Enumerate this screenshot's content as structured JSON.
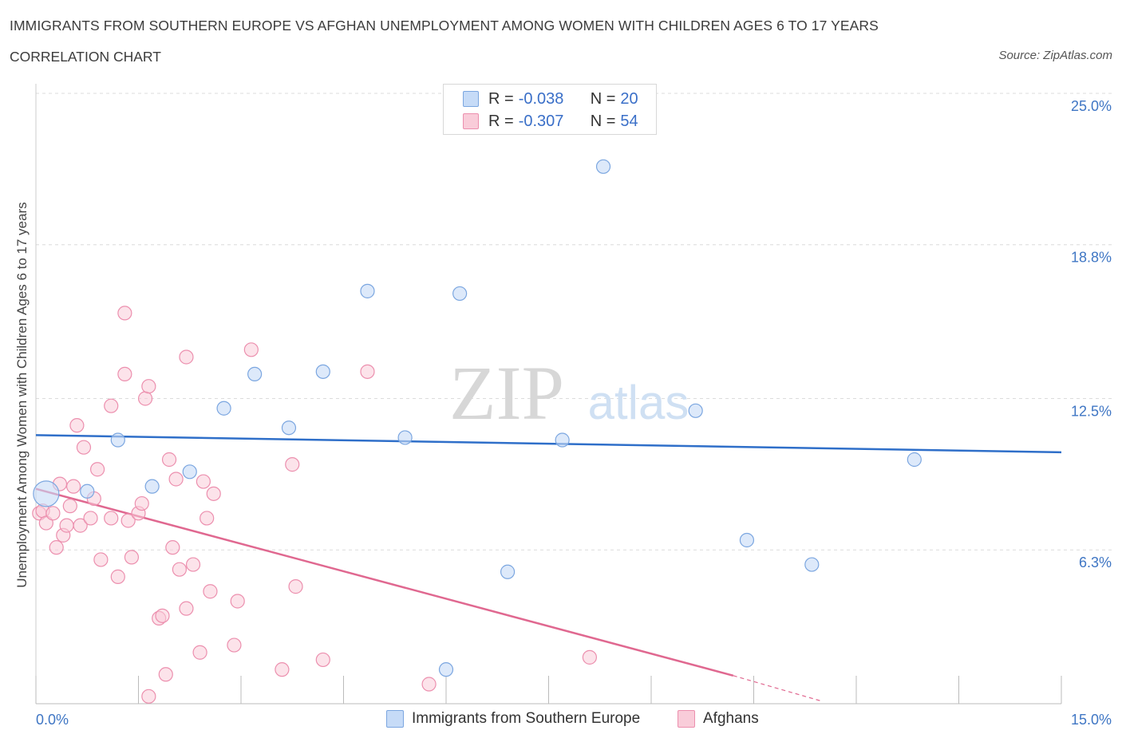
{
  "header": {
    "title": "IMMIGRANTS FROM SOUTHERN EUROPE VS AFGHAN UNEMPLOYMENT AMONG WOMEN WITH CHILDREN AGES 6 TO 17 YEARS",
    "subtitle": "CORRELATION CHART",
    "source": "Source: ZipAtlas.com"
  },
  "legend": {
    "blue": {
      "r_label": "R =",
      "r_value": "-0.038",
      "n_label": "N =",
      "n_value": "20"
    },
    "pink": {
      "r_label": "R =",
      "r_value": "-0.307",
      "n_label": "N =",
      "n_value": "54"
    }
  },
  "watermark": {
    "zip": "ZIP",
    "atlas": "atlas"
  },
  "colors": {
    "blue_fill": "#c6dbf7",
    "blue_stroke": "#7ba6e0",
    "blue_line": "#2f6fc9",
    "pink_fill": "#f9ccd9",
    "pink_stroke": "#ec8fae",
    "pink_line": "#e06890",
    "tick_label": "#3f76c4"
  },
  "chart_data": {
    "type": "scatter",
    "title": "IMMIGRANTS FROM SOUTHERN EUROPE VS AFGHAN UNEMPLOYMENT AMONG WOMEN WITH CHILDREN AGES 6 TO 17 YEARS",
    "xlabel": "",
    "ylabel": "Unemployment Among Women with Children Ages 6 to 17 years",
    "xlim": [
      0,
      15
    ],
    "ylim": [
      0,
      25
    ],
    "x_tick_labels": [
      "0.0%",
      "15.0%"
    ],
    "y_ticks": [
      6.3,
      12.5,
      18.8,
      25.0
    ],
    "y_tick_labels": [
      "6.3%",
      "12.5%",
      "18.8%",
      "25.0%"
    ],
    "grid": true,
    "legend_position": "bottom-center",
    "series": [
      {
        "name": "Immigrants from Southern Europe",
        "color": "#7ba6e0",
        "points": [
          {
            "x": 0.15,
            "y": 8.6,
            "big": true
          },
          {
            "x": 0.75,
            "y": 8.7
          },
          {
            "x": 1.2,
            "y": 10.8
          },
          {
            "x": 1.7,
            "y": 8.9
          },
          {
            "x": 2.25,
            "y": 9.5
          },
          {
            "x": 2.75,
            "y": 12.1
          },
          {
            "x": 3.2,
            "y": 13.5
          },
          {
            "x": 3.7,
            "y": 11.3
          },
          {
            "x": 4.2,
            "y": 13.6
          },
          {
            "x": 4.85,
            "y": 16.9
          },
          {
            "x": 5.4,
            "y": 10.9
          },
          {
            "x": 6.2,
            "y": 16.8
          },
          {
            "x": 6.0,
            "y": 1.4
          },
          {
            "x": 6.9,
            "y": 5.4
          },
          {
            "x": 7.7,
            "y": 10.8
          },
          {
            "x": 8.3,
            "y": 22.0
          },
          {
            "x": 9.65,
            "y": 12.0
          },
          {
            "x": 10.4,
            "y": 6.7
          },
          {
            "x": 11.35,
            "y": 5.7
          },
          {
            "x": 12.85,
            "y": 10.0
          }
        ]
      },
      {
        "name": "Afghans",
        "color": "#ec8fae",
        "points": [
          {
            "x": 0.05,
            "y": 7.8
          },
          {
            "x": 0.1,
            "y": 7.9
          },
          {
            "x": 0.15,
            "y": 7.4
          },
          {
            "x": 0.25,
            "y": 7.8
          },
          {
            "x": 0.3,
            "y": 6.4
          },
          {
            "x": 0.35,
            "y": 9.0
          },
          {
            "x": 0.4,
            "y": 6.9
          },
          {
            "x": 0.45,
            "y": 7.3
          },
          {
            "x": 0.5,
            "y": 8.1
          },
          {
            "x": 0.55,
            "y": 8.9
          },
          {
            "x": 0.6,
            "y": 11.4
          },
          {
            "x": 0.65,
            "y": 7.3
          },
          {
            "x": 0.7,
            "y": 10.5
          },
          {
            "x": 0.8,
            "y": 7.6
          },
          {
            "x": 0.85,
            "y": 8.4
          },
          {
            "x": 0.9,
            "y": 9.6
          },
          {
            "x": 0.95,
            "y": 5.9
          },
          {
            "x": 1.1,
            "y": 7.6
          },
          {
            "x": 1.1,
            "y": 12.2
          },
          {
            "x": 1.2,
            "y": 5.2
          },
          {
            "x": 1.3,
            "y": 16.0
          },
          {
            "x": 1.3,
            "y": 13.5
          },
          {
            "x": 1.35,
            "y": 7.5
          },
          {
            "x": 1.4,
            "y": 6.0
          },
          {
            "x": 1.5,
            "y": 7.8
          },
          {
            "x": 1.55,
            "y": 8.2
          },
          {
            "x": 1.6,
            "y": 12.5
          },
          {
            "x": 1.65,
            "y": 0.3
          },
          {
            "x": 1.65,
            "y": 13.0
          },
          {
            "x": 1.8,
            "y": 3.5
          },
          {
            "x": 1.85,
            "y": 3.6
          },
          {
            "x": 1.9,
            "y": 1.2
          },
          {
            "x": 1.95,
            "y": 10.0
          },
          {
            "x": 2.0,
            "y": 6.4
          },
          {
            "x": 2.05,
            "y": 9.2
          },
          {
            "x": 2.1,
            "y": 5.5
          },
          {
            "x": 2.2,
            "y": 3.9
          },
          {
            "x": 2.2,
            "y": 14.2
          },
          {
            "x": 2.3,
            "y": 5.7
          },
          {
            "x": 2.4,
            "y": 2.1
          },
          {
            "x": 2.45,
            "y": 9.1
          },
          {
            "x": 2.5,
            "y": 7.6
          },
          {
            "x": 2.55,
            "y": 4.6
          },
          {
            "x": 2.6,
            "y": 8.6
          },
          {
            "x": 2.9,
            "y": 2.4
          },
          {
            "x": 2.95,
            "y": 4.2
          },
          {
            "x": 3.15,
            "y": 14.5
          },
          {
            "x": 3.6,
            "y": 1.4
          },
          {
            "x": 3.75,
            "y": 9.8
          },
          {
            "x": 3.8,
            "y": 4.8
          },
          {
            "x": 4.2,
            "y": 1.8
          },
          {
            "x": 4.85,
            "y": 13.6
          },
          {
            "x": 5.75,
            "y": 0.8
          },
          {
            "x": 8.1,
            "y": 1.9
          }
        ]
      }
    ],
    "trend_lines": [
      {
        "series": "Immigrants from Southern Europe",
        "x": [
          0,
          15
        ],
        "y": [
          11.0,
          10.3
        ],
        "dashed_extension": false
      },
      {
        "series": "Afghans",
        "x": [
          0,
          10.2
        ],
        "y": [
          8.8,
          1.15
        ],
        "dashed_extension_x": [
          10.2,
          11.5
        ],
        "dashed_extension_y": [
          1.15,
          0.1
        ]
      }
    ]
  },
  "bottom_legend": {
    "items": [
      {
        "label": "Immigrants from Southern Europe"
      },
      {
        "label": "Afghans"
      }
    ]
  }
}
